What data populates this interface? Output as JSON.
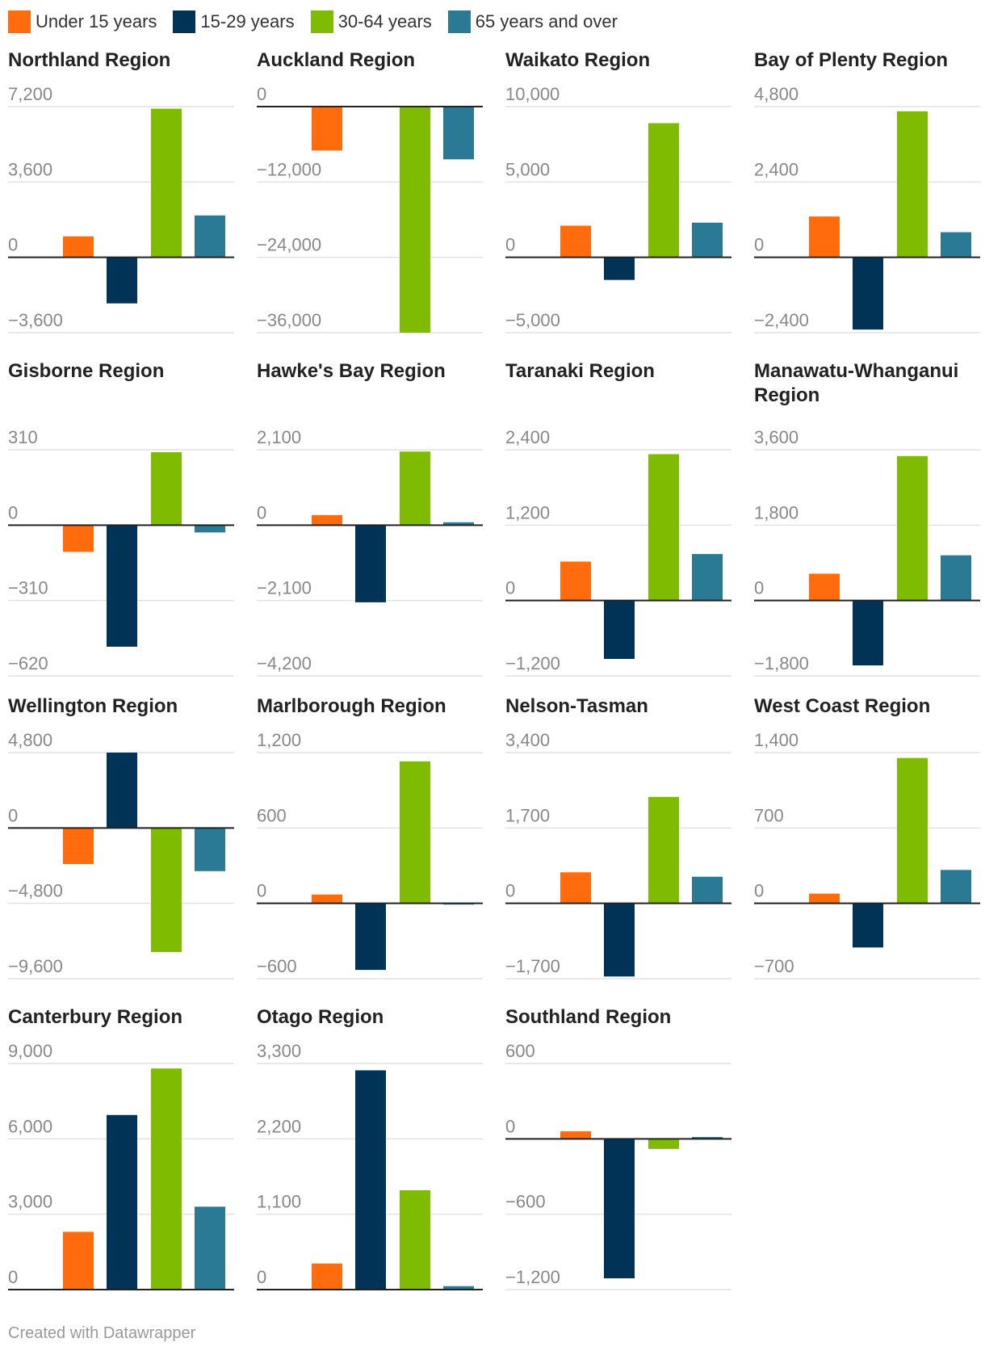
{
  "legend": [
    {
      "name": "Under 15 years",
      "color": "#ff6b0d"
    },
    {
      "name": "15-29 years",
      "color": "#003356"
    },
    {
      "name": "30-64 years",
      "color": "#7fbb00"
    },
    {
      "name": "65 years and over",
      "color": "#2a7a96"
    }
  ],
  "credit": "Created with Datawrapper",
  "chart_data": [
    {
      "type": "bar",
      "title": "Northland Region",
      "categories": [
        "Under 15 years",
        "15-29 years",
        "30-64 years",
        "65 years and over"
      ],
      "values": [
        1000,
        -2200,
        7100,
        2000
      ],
      "ylim": [
        -3600,
        7200
      ],
      "ticks": [
        7200,
        3600,
        0,
        -3600
      ],
      "tick_labels": [
        "7,200",
        "3,600",
        "0",
        "−3,600"
      ]
    },
    {
      "type": "bar",
      "title": "Auckland Region",
      "categories": [
        "Under 15 years",
        "15-29 years",
        "30-64 years",
        "65 years and over"
      ],
      "values": [
        -7000,
        0,
        -36000,
        -8400
      ],
      "ylim": [
        -36000,
        0
      ],
      "ticks": [
        0,
        -12000,
        -24000,
        -36000
      ],
      "tick_labels": [
        "0",
        "−12,000",
        "−24,000",
        "−36,000"
      ]
    },
    {
      "type": "bar",
      "title": "Waikato Region",
      "categories": [
        "Under 15 years",
        "15-29 years",
        "30-64 years",
        "65 years and over"
      ],
      "values": [
        2100,
        -1500,
        8900,
        2300
      ],
      "ylim": [
        -5000,
        10000
      ],
      "ticks": [
        10000,
        5000,
        0,
        -5000
      ],
      "tick_labels": [
        "10,000",
        "5,000",
        "0",
        "−5,000"
      ]
    },
    {
      "type": "bar",
      "title": "Bay of Plenty Region",
      "categories": [
        "Under 15 years",
        "15-29 years",
        "30-64 years",
        "65 years and over"
      ],
      "values": [
        1300,
        -2300,
        4650,
        800
      ],
      "ylim": [
        -2400,
        4800
      ],
      "ticks": [
        4800,
        2400,
        0,
        -2400
      ],
      "tick_labels": [
        "4,800",
        "2,400",
        "0",
        "−2,400"
      ]
    },
    {
      "type": "bar",
      "title": "Gisborne Region",
      "categories": [
        "Under 15 years",
        "15-29 years",
        "30-64 years",
        "65 years and over"
      ],
      "values": [
        -110,
        -500,
        300,
        -30
      ],
      "ylim": [
        -620,
        310
      ],
      "ticks": [
        310,
        0,
        -310,
        -620
      ],
      "tick_labels": [
        "310",
        "0",
        "−310",
        "−620"
      ]
    },
    {
      "type": "bar",
      "title": "Hawke's Bay Region",
      "categories": [
        "Under 15 years",
        "15-29 years",
        "30-64 years",
        "65 years and over"
      ],
      "values": [
        280,
        -2150,
        2050,
        80
      ],
      "ylim": [
        -4200,
        2100
      ],
      "ticks": [
        2100,
        0,
        -2100,
        -4200
      ],
      "tick_labels": [
        "2,100",
        "0",
        "−2,100",
        "−4,200"
      ]
    },
    {
      "type": "bar",
      "title": "Taranaki Region",
      "categories": [
        "Under 15 years",
        "15-29 years",
        "30-64 years",
        "65 years and over"
      ],
      "values": [
        620,
        -930,
        2330,
        740
      ],
      "ylim": [
        -1200,
        2400
      ],
      "ticks": [
        2400,
        1200,
        0,
        -1200
      ],
      "tick_labels": [
        "2,400",
        "1,200",
        "0",
        "−1,200"
      ]
    },
    {
      "type": "bar",
      "title": "Manawatu-Whanganui Region",
      "categories": [
        "Under 15 years",
        "15-29 years",
        "30-64 years",
        "65 years and over"
      ],
      "values": [
        640,
        -1550,
        3450,
        1080
      ],
      "ylim": [
        -1800,
        3600
      ],
      "ticks": [
        3600,
        1800,
        0,
        -1800
      ],
      "tick_labels": [
        "3,600",
        "1,800",
        "0",
        "−1,800"
      ]
    },
    {
      "type": "bar",
      "title": "Wellington Region",
      "categories": [
        "Under 15 years",
        "15-29 years",
        "30-64 years",
        "65 years and over"
      ],
      "values": [
        -2300,
        4800,
        -7900,
        -2750
      ],
      "ylim": [
        -9600,
        4800
      ],
      "ticks": [
        4800,
        0,
        -4800,
        -9600
      ],
      "tick_labels": [
        "4,800",
        "0",
        "−4,800",
        "−9,600"
      ]
    },
    {
      "type": "bar",
      "title": "Marlborough Region",
      "categories": [
        "Under 15 years",
        "15-29 years",
        "30-64 years",
        "65 years and over"
      ],
      "values": [
        70,
        -530,
        1130,
        -10
      ],
      "ylim": [
        -600,
        1200
      ],
      "ticks": [
        1200,
        600,
        0,
        -600
      ],
      "tick_labels": [
        "1,200",
        "600",
        "0",
        "−600"
      ]
    },
    {
      "type": "bar",
      "title": "Nelson-Tasman",
      "categories": [
        "Under 15 years",
        "15-29 years",
        "30-64 years",
        "65 years and over"
      ],
      "values": [
        700,
        -1650,
        2400,
        600
      ],
      "ylim": [
        -1700,
        3400
      ],
      "ticks": [
        3400,
        1700,
        0,
        -1700
      ],
      "tick_labels": [
        "3,400",
        "1,700",
        "0",
        "−1,700"
      ]
    },
    {
      "type": "bar",
      "title": "West Coast Region",
      "categories": [
        "Under 15 years",
        "15-29 years",
        "30-64 years",
        "65 years and over"
      ],
      "values": [
        90,
        -410,
        1350,
        310
      ],
      "ylim": [
        -700,
        1400
      ],
      "ticks": [
        1400,
        700,
        0,
        -700
      ],
      "tick_labels": [
        "1,400",
        "700",
        "0",
        "−700"
      ]
    },
    {
      "type": "bar",
      "title": "Canterbury Region",
      "categories": [
        "Under 15 years",
        "15-29 years",
        "30-64 years",
        "65 years and over"
      ],
      "values": [
        2300,
        6950,
        8800,
        3300
      ],
      "ylim": [
        0,
        9000
      ],
      "ticks": [
        9000,
        6000,
        3000,
        0
      ],
      "tick_labels": [
        "9,000",
        "6,000",
        "3,000",
        "0"
      ]
    },
    {
      "type": "bar",
      "title": "Otago Region",
      "categories": [
        "Under 15 years",
        "15-29 years",
        "30-64 years",
        "65 years and over"
      ],
      "values": [
        380,
        3200,
        1450,
        50
      ],
      "ylim": [
        0,
        3300
      ],
      "ticks": [
        3300,
        2200,
        1100,
        0
      ],
      "tick_labels": [
        "3,300",
        "2,200",
        "1,100",
        "0"
      ]
    },
    {
      "type": "bar",
      "title": "Southland Region",
      "categories": [
        "Under 15 years",
        "15-29 years",
        "30-64 years",
        "65 years and over"
      ],
      "values": [
        60,
        -1110,
        -80,
        15
      ],
      "ylim": [
        -1200,
        600
      ],
      "ticks": [
        600,
        0,
        -600,
        -1200
      ],
      "tick_labels": [
        "600",
        "0",
        "−600",
        "−1,200"
      ]
    }
  ]
}
